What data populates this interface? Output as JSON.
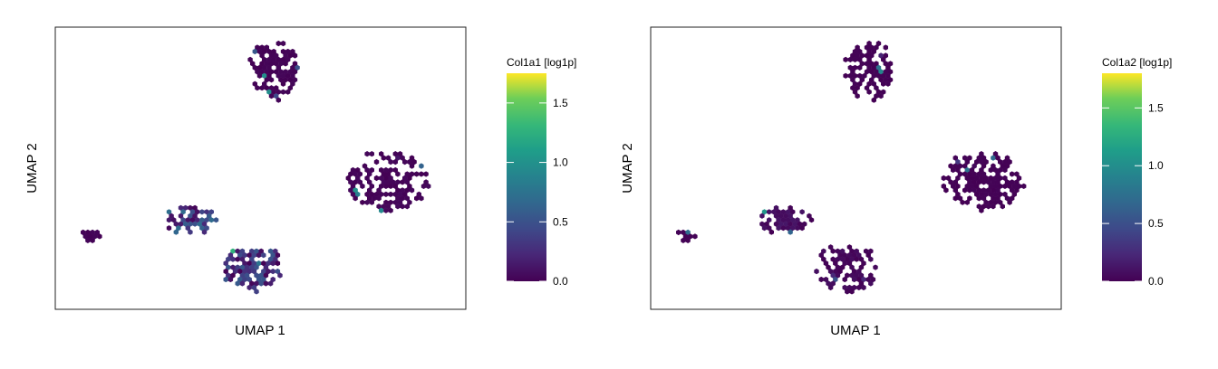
{
  "chart_data": [
    {
      "type": "hexbin",
      "xlabel": "UMAP 1",
      "ylabel": "UMAP 2",
      "colorbar": {
        "label": "Col1a1 [log1p]",
        "colormap": "viridis",
        "range": [
          0,
          1.75
        ],
        "ticks": [
          0.0,
          0.5,
          1.0,
          1.5
        ],
        "tick_labels": [
          "0.0",
          "0.5",
          "1.0",
          "1.5"
        ]
      },
      "grid": false,
      "clusters": [
        {
          "label": "top",
          "x": [
            -1.2,
            0.2
          ],
          "y": [
            3.0,
            5.5
          ],
          "level": 0.02
        },
        {
          "label": "right",
          "x": [
            1.5,
            3.8
          ],
          "y": [
            -1.5,
            1.0
          ],
          "level": 0.03
        },
        {
          "label": "mid-left",
          "x": [
            -3.5,
            -2.0
          ],
          "y": [
            -2.5,
            -1.2
          ],
          "level": 0.45
        },
        {
          "label": "bottom",
          "x": [
            -2.0,
            -0.2
          ],
          "y": [
            -4.8,
            -2.8
          ],
          "level": 0.35
        },
        {
          "label": "far-left",
          "x": [
            -5.8,
            -5.2
          ],
          "y": [
            -2.8,
            -2.2
          ],
          "level": 0.02
        }
      ]
    },
    {
      "type": "hexbin",
      "xlabel": "UMAP 1",
      "ylabel": "UMAP 2",
      "colorbar": {
        "label": "Col1a2 [log1p]",
        "colormap": "viridis",
        "range": [
          0,
          1.8
        ],
        "ticks": [
          0.0,
          0.5,
          1.0,
          1.5
        ],
        "tick_labels": [
          "0.0",
          "0.5",
          "1.0",
          "1.5"
        ]
      },
      "grid": false,
      "clusters": [
        {
          "label": "top",
          "x": [
            -1.2,
            0.2
          ],
          "y": [
            3.0,
            5.5
          ],
          "level": 0.01
        },
        {
          "label": "right",
          "x": [
            1.5,
            3.8
          ],
          "y": [
            -1.5,
            1.0
          ],
          "level": 0.01
        },
        {
          "label": "mid-left",
          "x": [
            -3.5,
            -2.0
          ],
          "y": [
            -2.5,
            -1.2
          ],
          "level": 0.08
        },
        {
          "label": "bottom",
          "x": [
            -2.0,
            -0.2
          ],
          "y": [
            -4.8,
            -2.8
          ],
          "level": 0.05
        },
        {
          "label": "far-left",
          "x": [
            -5.8,
            -5.2
          ],
          "y": [
            -2.8,
            -2.2
          ],
          "level": 0.01
        }
      ]
    }
  ]
}
